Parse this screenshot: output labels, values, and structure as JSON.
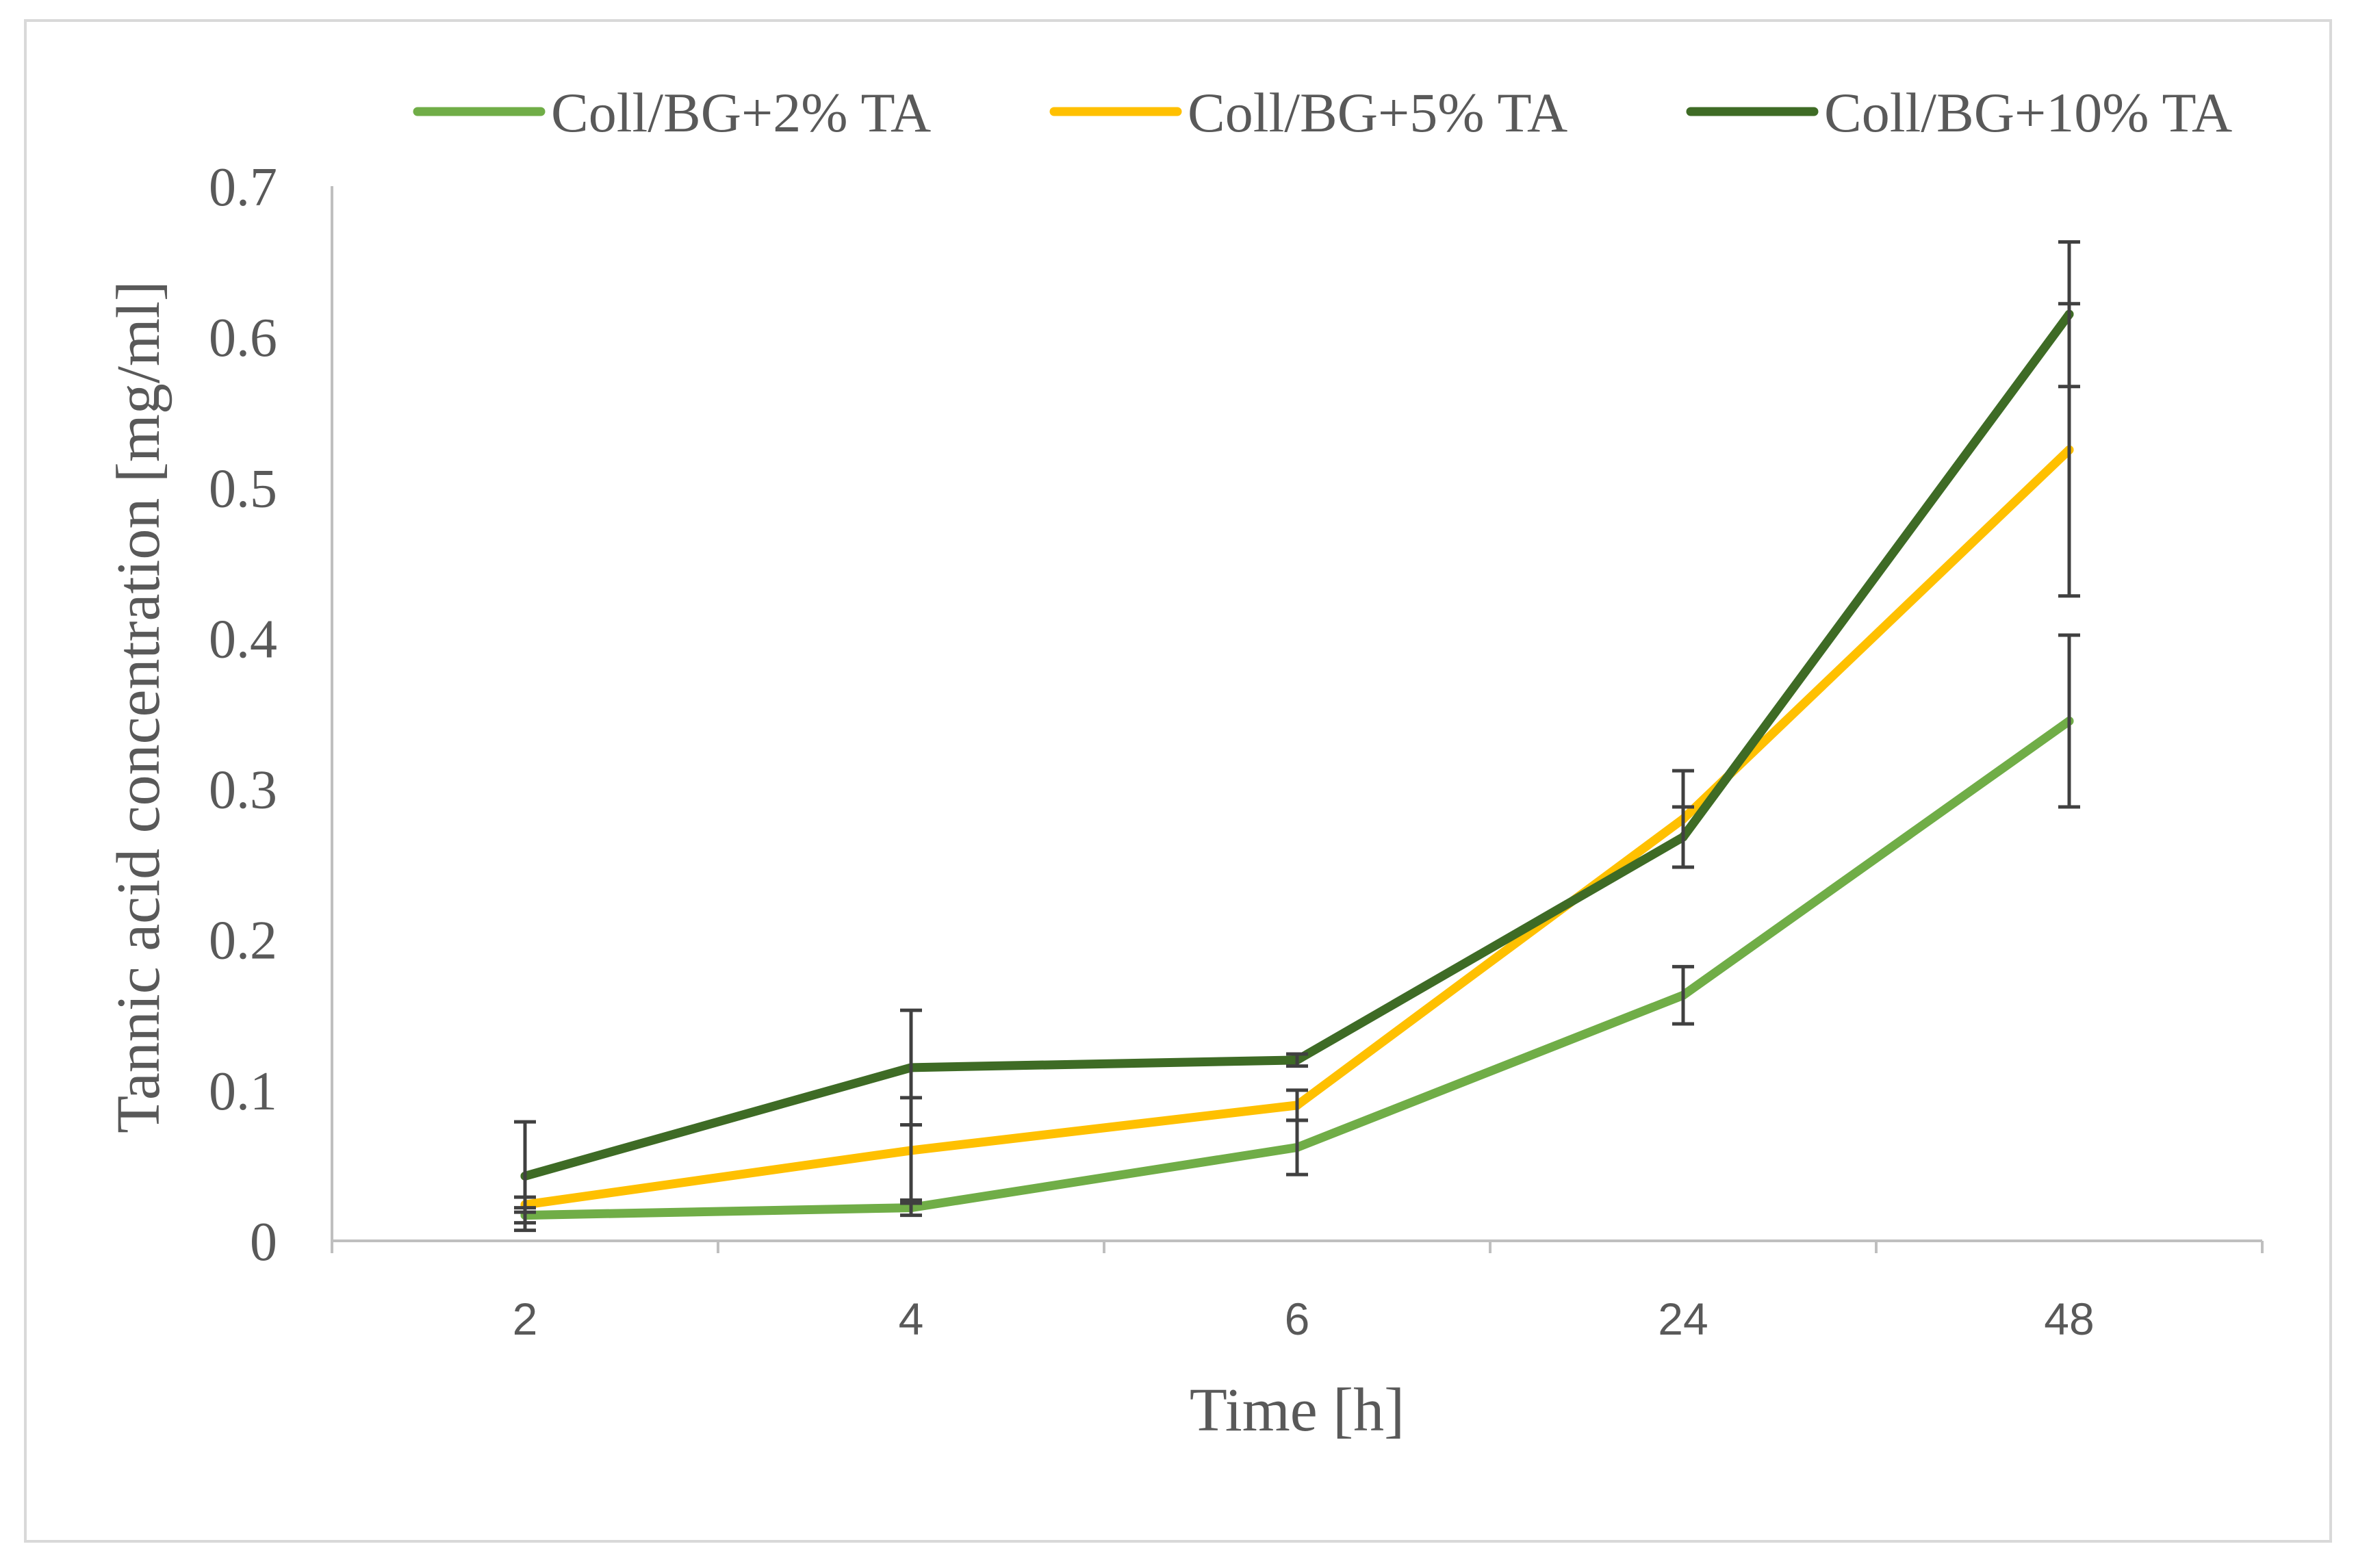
{
  "chart_data": {
    "type": "line",
    "title": "",
    "xlabel": "Time [h]",
    "ylabel": "Tannic acid concentration [mg/ml]",
    "categories": [
      "2",
      "4",
      "6",
      "24",
      "48"
    ],
    "yticks": [
      "0",
      "0.1",
      "0.2",
      "0.3",
      "0.4",
      "0.5",
      "0.6",
      "0.7"
    ],
    "ylim": [
      0,
      0.7
    ],
    "grid": false,
    "legend_position": "top",
    "series": [
      {
        "name": "Coll/BG+2% TA",
        "color": "#70ad47",
        "values": [
          0.017,
          0.022,
          0.062,
          0.163,
          0.345
        ],
        "error": [
          0.005,
          0.005,
          0.018,
          0.019,
          0.057
        ]
      },
      {
        "name": "Coll/BG+5% TA",
        "color": "#ffc000",
        "values": [
          0.024,
          0.06,
          0.09,
          0.28,
          0.525
        ],
        "error": [
          0.005,
          0.035,
          0.01,
          0.032,
          0.097
        ]
      },
      {
        "name": "Coll/BG+10% TA",
        "color": "#3e6b25",
        "values": [
          0.043,
          0.115,
          0.12,
          0.268,
          0.615
        ],
        "error": [
          0.036,
          0.038,
          0.004,
          0.02,
          0.048
        ]
      }
    ]
  }
}
